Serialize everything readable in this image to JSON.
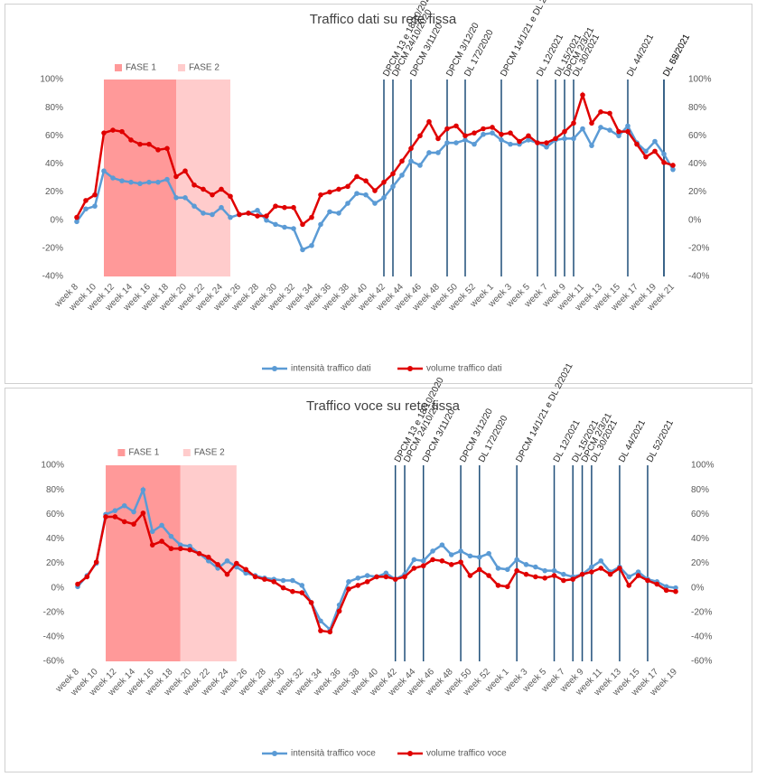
{
  "chart_data": [
    {
      "type": "line",
      "title": "Traffico dati su rete fissa",
      "categories": [
        "week 8",
        null,
        "week 10",
        null,
        "week 12",
        null,
        "week 14",
        null,
        "week 16",
        null,
        "week 18",
        null,
        "week 20",
        null,
        "week 22",
        null,
        "week 24",
        null,
        "week 26",
        null,
        "week 28",
        null,
        "week 30",
        null,
        "week 32",
        null,
        "week 34",
        null,
        "week 36",
        null,
        "week 38",
        null,
        "week 40",
        null,
        "week 42",
        null,
        "week 44",
        null,
        "week 46",
        null,
        "week 48",
        null,
        "week 50",
        null,
        "week 52",
        null,
        "week 1",
        null,
        "week 3",
        null,
        "week 5",
        null,
        "week 7",
        null,
        "week 9",
        null,
        "week 11",
        null,
        "week 13",
        null,
        "week 15",
        null,
        "week 17",
        null,
        "week 19",
        null,
        "week 21"
      ],
      "series": [
        {
          "name": "intensità traffico dati",
          "color": "#5b9bd5",
          "values": [
            -1,
            8,
            10,
            35,
            30,
            28,
            27,
            26,
            27,
            27,
            29,
            16,
            16,
            10,
            5,
            4,
            9,
            2,
            4,
            5,
            7,
            0,
            -3,
            -5,
            -6,
            -21,
            -18,
            -3,
            6,
            5,
            12,
            19,
            18,
            12,
            16,
            24,
            32,
            42,
            39,
            48,
            48,
            55,
            55,
            57,
            54,
            61,
            62,
            57,
            54,
            54,
            57,
            55,
            52,
            57,
            58,
            58,
            65,
            53,
            66,
            64,
            60,
            67,
            55,
            49,
            56,
            47,
            36
          ]
        },
        {
          "name": "volume traffico dati",
          "color": "#e00000",
          "values": [
            2,
            14,
            18,
            62,
            64,
            63,
            57,
            54,
            54,
            50,
            51,
            31,
            35,
            25,
            22,
            18,
            22,
            17,
            4,
            5,
            3,
            3,
            10,
            9,
            9,
            -3,
            2,
            18,
            20,
            22,
            24,
            31,
            28,
            21,
            27,
            33,
            42,
            51,
            60,
            70,
            58,
            65,
            67,
            60,
            62,
            65,
            66,
            61,
            62,
            56,
            60,
            55,
            55,
            58,
            63,
            69,
            89,
            69,
            77,
            76,
            63,
            63,
            54,
            45,
            49,
            41,
            39
          ]
        }
      ],
      "ylim": [
        -40,
        100
      ],
      "yticks": [
        {
          "value": -40,
          "label": "-40%"
        },
        {
          "value": -20,
          "label": "-20%"
        },
        {
          "value": 0,
          "label": "0%"
        },
        {
          "value": 20,
          "label": "20%"
        },
        {
          "value": 40,
          "label": "40%"
        },
        {
          "value": 60,
          "label": "60%"
        },
        {
          "value": 80,
          "label": "80%"
        },
        {
          "value": 100,
          "label": "100%"
        }
      ],
      "y2lim": [
        -40,
        100
      ],
      "y2ticks": [
        {
          "value": -40,
          "label": "-40%"
        },
        {
          "value": -20,
          "label": "-20%"
        },
        {
          "value": 0,
          "label": "0%"
        },
        {
          "value": 20,
          "label": "20%"
        },
        {
          "value": 40,
          "label": "40%"
        },
        {
          "value": 60,
          "label": "60%"
        },
        {
          "value": 80,
          "label": "80%"
        },
        {
          "value": 100,
          "label": "100%"
        }
      ],
      "grid": false,
      "phases": [
        {
          "label": "FASE 1",
          "start": 3,
          "end": 11,
          "color": "#ff9999"
        },
        {
          "label": "FASE 2",
          "start": 11,
          "end": 17,
          "color": "#ffcccc"
        }
      ],
      "events": [
        {
          "label": "DPCM 13 e 18/10/2020",
          "at": 34
        },
        {
          "label": "DPCM 24/10/2020",
          "at": 35
        },
        {
          "label": "DPCM 3/11/20",
          "at": 37
        },
        {
          "label": "DPCM 3/12/20",
          "at": 41
        },
        {
          "label": "DL 172/2020",
          "at": 43
        },
        {
          "label": "DPCM 14/1/21 e DL 2/2021",
          "at": 47
        },
        {
          "label": "DL 12/2021",
          "at": 51
        },
        {
          "label": "DL 15/2021",
          "at": 53
        },
        {
          "label": "DPCM 2/3/21",
          "at": 54
        },
        {
          "label": "DL 30/2021",
          "at": 55
        },
        {
          "label": "DL 44/2021",
          "at": 61
        },
        {
          "label": "DL 52/2021",
          "at": 65
        },
        {
          "label": "DL 65/2021",
          "at": 65
        }
      ]
    },
    {
      "type": "line",
      "title": "Traffico voce su rete fissa",
      "categories": [
        "week 8",
        null,
        "week 10",
        null,
        "week 12",
        null,
        "week 14",
        null,
        "week 16",
        null,
        "week 18",
        null,
        "week 20",
        null,
        "week 22",
        null,
        "week 24",
        null,
        "week 26",
        null,
        "week 28",
        null,
        "week 30",
        null,
        "week 32",
        null,
        "week 34",
        null,
        "week 36",
        null,
        "week 38",
        null,
        "week 40",
        null,
        "week 42",
        null,
        "week 44",
        null,
        "week 46",
        null,
        "week 48",
        null,
        "week 50",
        null,
        "week 52",
        null,
        "week 1",
        null,
        "week 3",
        null,
        "week 5",
        null,
        "week 7",
        null,
        "week 9",
        null,
        "week 11",
        null,
        "week 13",
        null,
        "week 15",
        null,
        "week 17",
        null,
        "week 19"
      ],
      "series": [
        {
          "name": "intensità traffico voce",
          "color": "#5b9bd5",
          "values": [
            1,
            10,
            20,
            60,
            63,
            67,
            62,
            80,
            46,
            51,
            42,
            35,
            34,
            28,
            22,
            16,
            22,
            17,
            12,
            10,
            8,
            7,
            6,
            6,
            2,
            -12,
            -27,
            -34,
            -14,
            5,
            8,
            10,
            9,
            12,
            7,
            11,
            23,
            22,
            30,
            35,
            27,
            30,
            26,
            25,
            28,
            16,
            15,
            23,
            19,
            17,
            14,
            14,
            11,
            9,
            11,
            17,
            22,
            13,
            17,
            9,
            13,
            7,
            5,
            1,
            0
          ]
        },
        {
          "name": "volume traffico voce",
          "color": "#e00000",
          "values": [
            3,
            9,
            21,
            58,
            58,
            54,
            52,
            61,
            35,
            38,
            32,
            32,
            31,
            28,
            25,
            19,
            11,
            20,
            15,
            9,
            7,
            5,
            0,
            -3,
            -4,
            -12,
            -35,
            -36,
            -19,
            -1,
            2,
            5,
            9,
            9,
            7,
            9,
            16,
            18,
            23,
            22,
            19,
            21,
            10,
            15,
            10,
            2,
            1,
            14,
            11,
            9,
            8,
            10,
            6,
            7,
            11,
            13,
            16,
            11,
            16,
            2,
            10,
            6,
            3,
            -2,
            -3
          ]
        }
      ],
      "ylim": [
        -60,
        100
      ],
      "yticks": [
        {
          "value": -60,
          "label": "-60%"
        },
        {
          "value": -40,
          "label": "-40%"
        },
        {
          "value": -20,
          "label": "-20%"
        },
        {
          "value": 0,
          "label": "0%"
        },
        {
          "value": 20,
          "label": "20%"
        },
        {
          "value": 40,
          "label": "40%"
        },
        {
          "value": 60,
          "label": "60%"
        },
        {
          "value": 80,
          "label": "80%"
        },
        {
          "value": 100,
          "label": "100%"
        }
      ],
      "y2lim": [
        -60,
        100
      ],
      "y2ticks": [
        {
          "value": -60,
          "label": "-60%"
        },
        {
          "value": -40,
          "label": "-40%"
        },
        {
          "value": -20,
          "label": "-20%"
        },
        {
          "value": 0,
          "label": "0%"
        },
        {
          "value": 20,
          "label": "20%"
        },
        {
          "value": 40,
          "label": "40%"
        },
        {
          "value": 60,
          "label": "60%"
        },
        {
          "value": 80,
          "label": "80%"
        },
        {
          "value": 100,
          "label": "100%"
        }
      ],
      "grid": false,
      "phases": [
        {
          "label": "FASE 1",
          "start": 3,
          "end": 11,
          "color": "#ff9999"
        },
        {
          "label": "FASE 2",
          "start": 11,
          "end": 17,
          "color": "#ffcccc"
        }
      ],
      "events": [
        {
          "label": "DPCM 13 e 18/10/2020",
          "at": 34
        },
        {
          "label": "DPCM 24/10/20",
          "at": 35
        },
        {
          "label": "DPCM 3/11/20",
          "at": 37
        },
        {
          "label": "DPCM 3/12/20",
          "at": 41
        },
        {
          "label": "DL 172/2020",
          "at": 43
        },
        {
          "label": "DPCM 14/1/21 e DL 2/2021",
          "at": 47
        },
        {
          "label": "DL 12/2021",
          "at": 51
        },
        {
          "label": "DL 15/2021",
          "at": 53
        },
        {
          "label": "DPCM 2/3/21",
          "at": 54
        },
        {
          "label": "DL 30/2021",
          "at": 55
        },
        {
          "label": "DL 44/2021",
          "at": 58
        },
        {
          "label": "DL 52/2021",
          "at": 61
        }
      ]
    }
  ]
}
